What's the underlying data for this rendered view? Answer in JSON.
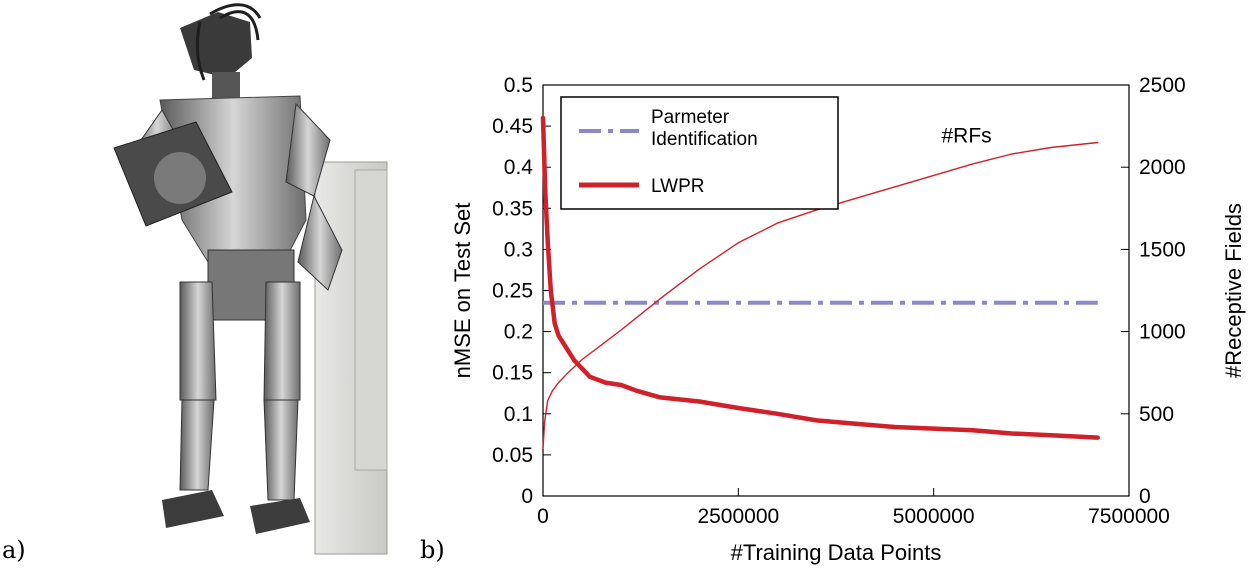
{
  "panels": {
    "a_label": "a)",
    "b_label": "b)"
  },
  "chart_data": {
    "type": "line",
    "xlabel": "#Training Data Points",
    "ylabel": "nMSE on Test Set",
    "y2label": "#Receptive Fields",
    "xlim": [
      0,
      7500000
    ],
    "ylim": [
      0,
      0.5
    ],
    "y2lim": [
      0,
      2500
    ],
    "xticks": [
      0,
      2500000,
      5000000,
      7500000
    ],
    "xtick_labels": [
      "0",
      "2500000",
      "5000000",
      "7500000"
    ],
    "yticks": [
      0,
      0.05,
      0.1,
      0.15,
      0.2,
      0.25,
      0.3,
      0.35,
      0.4,
      0.45,
      0.5
    ],
    "ytick_labels": [
      "0",
      "0.05",
      "0.1",
      "0.15",
      "0.2",
      "0.25",
      "0.3",
      "0.35",
      "0.4",
      "0.45",
      "0.5"
    ],
    "y2ticks": [
      0,
      500,
      1000,
      1500,
      2000,
      2500
    ],
    "y2tick_labels": [
      "0",
      "500",
      "1000",
      "1500",
      "2000",
      "2500"
    ],
    "grid": false,
    "legend_position": "top-left",
    "legend": [
      "Parmeter Identification",
      "LWPR"
    ],
    "annotations": [
      {
        "text": "#RFs",
        "x": 5100000,
        "y": 0.43
      }
    ],
    "colors": {
      "param": "#8b88c8",
      "lwpr": "#d0202a",
      "rfs": "#d0202a"
    },
    "series": [
      {
        "name": "Parmeter Identification",
        "axis": "left",
        "style": "dash-dot",
        "x": [
          0,
          7100000
        ],
        "values": [
          0.235,
          0.235
        ]
      },
      {
        "name": "LWPR",
        "axis": "left",
        "style": "thick",
        "x": [
          0,
          30000,
          60000,
          100000,
          150000,
          200000,
          300000,
          400000,
          600000,
          800000,
          1000000,
          1200000,
          1500000,
          2000000,
          2500000,
          3000000,
          3500000,
          4000000,
          4500000,
          5000000,
          5500000,
          6000000,
          6500000,
          7100000
        ],
        "values": [
          0.46,
          0.37,
          0.31,
          0.25,
          0.21,
          0.195,
          0.18,
          0.165,
          0.145,
          0.138,
          0.135,
          0.128,
          0.12,
          0.115,
          0.107,
          0.1,
          0.092,
          0.088,
          0.084,
          0.082,
          0.08,
          0.076,
          0.074,
          0.071
        ]
      },
      {
        "name": "#RFs",
        "axis": "right",
        "style": "thin",
        "x": [
          0,
          20000,
          60000,
          120000,
          200000,
          300000,
          500000,
          750000,
          1000000,
          1500000,
          2000000,
          2500000,
          3000000,
          3500000,
          4000000,
          4500000,
          5000000,
          5500000,
          6000000,
          6500000,
          7100000
        ],
        "values": [
          290,
          450,
          580,
          640,
          690,
          740,
          830,
          920,
          1010,
          1200,
          1380,
          1540,
          1660,
          1740,
          1810,
          1880,
          1950,
          2020,
          2080,
          2120,
          2150
        ]
      }
    ]
  }
}
